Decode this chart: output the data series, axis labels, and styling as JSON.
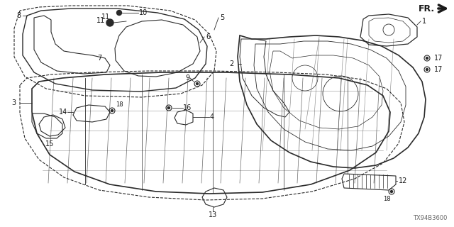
{
  "bg_color": "#ffffff",
  "diagram_code": "TX94B3600",
  "fr_label": "FR.",
  "line_color": "#2a2a2a",
  "text_color": "#1a1a1a",
  "font_size": 7.0,
  "label_font_size": 7.0
}
